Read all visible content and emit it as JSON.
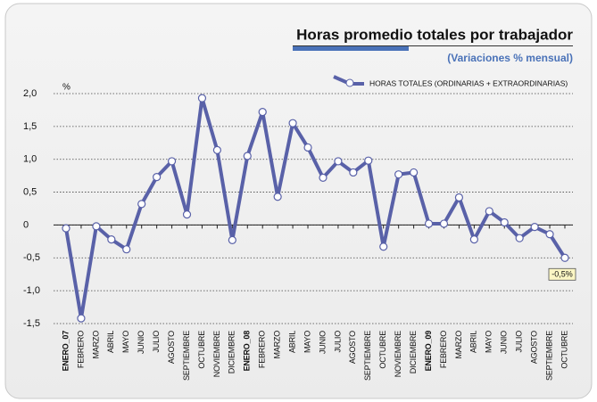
{
  "chart_data": {
    "type": "line",
    "title": "Horas promedio totales por trabajador",
    "subtitle": "(Variaciones % mensual)",
    "y_unit_label": "%",
    "categories": [
      "ENERO_07",
      "FEBRERO",
      "MARZO",
      "ABRIL",
      "MAYO",
      "JUNIO",
      "JULIO",
      "AGOSTO",
      "SEPTIEMBRE",
      "OCTUBRE",
      "NOVIEMBRE",
      "DICIEMBRE",
      "ENERO_08",
      "FEBRERO",
      "MARZO",
      "ABRIL",
      "MAYO",
      "JUNIO",
      "JULIO",
      "AGOSTO",
      "SEPTIEMBRE",
      "OCTUBRE",
      "NOVIEMBRE",
      "DICIEMBRE",
      "ENERO_09",
      "FEBRERO",
      "MARZO",
      "ABRIL",
      "MAYO",
      "JUNIO",
      "JULIO",
      "AGOSTO",
      "SEPTIEMBRE",
      "OCTUBRE"
    ],
    "highlight_categories": [
      0,
      12,
      24
    ],
    "series": [
      {
        "name": "HORAS TOTALES (ORDINARIAS + EXTRAORDINARIAS)",
        "color": "#5961a8",
        "values": [
          -0.05,
          -1.42,
          -0.02,
          -0.22,
          -0.37,
          0.32,
          0.73,
          0.97,
          0.16,
          1.93,
          1.14,
          -0.23,
          1.05,
          1.72,
          0.43,
          1.55,
          1.18,
          0.72,
          0.97,
          0.8,
          0.98,
          -0.33,
          0.77,
          0.8,
          0.02,
          0.02,
          0.42,
          -0.22,
          0.21,
          0.04,
          -0.2,
          -0.03,
          -0.14,
          -0.5
        ],
        "value_labels": [
          null,
          null,
          null,
          null,
          null,
          null,
          null,
          null,
          null,
          null,
          null,
          null,
          null,
          null,
          null,
          null,
          null,
          null,
          null,
          null,
          null,
          null,
          null,
          null,
          null,
          null,
          null,
          null,
          null,
          null,
          null,
          null,
          null,
          "-0,5%"
        ]
      }
    ],
    "ylim": [
      -1.5,
      2.0
    ],
    "yticks": [
      {
        "value": -1.5,
        "label": "-1,5"
      },
      {
        "value": -1.0,
        "label": "-1,0"
      },
      {
        "value": -0.5,
        "label": "-0,5"
      },
      0,
      {
        "value": 0.5,
        "label": "0,5"
      },
      {
        "value": 1.0,
        "label": "1,0"
      },
      {
        "value": 1.5,
        "label": "1,5"
      },
      {
        "value": 2.0,
        "label": "2,0"
      }
    ],
    "grid": true
  }
}
